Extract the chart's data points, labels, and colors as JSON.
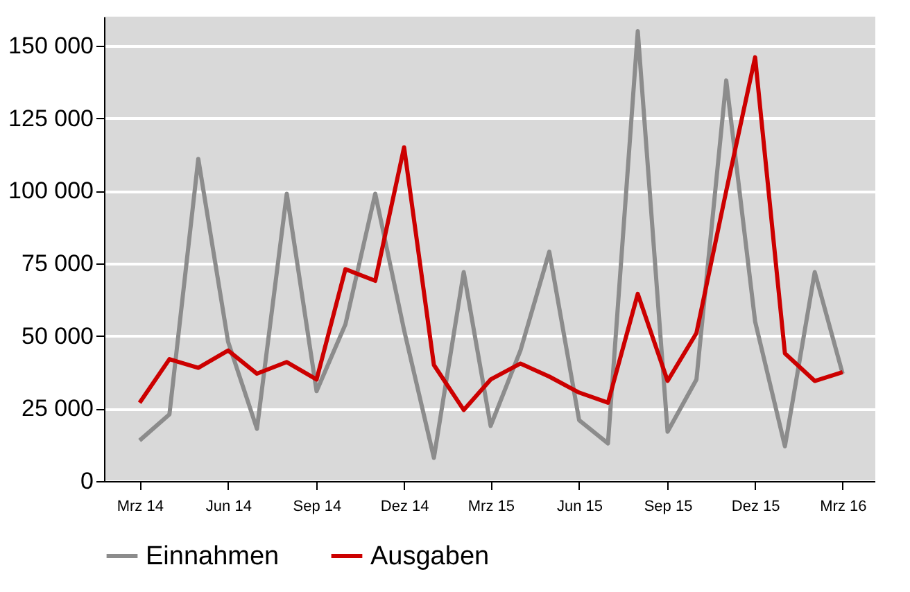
{
  "chart_data": {
    "type": "line",
    "x": [
      "2014-03",
      "2014-04",
      "2014-05",
      "2014-06",
      "2014-07",
      "2014-08",
      "2014-09",
      "2014-10",
      "2014-11",
      "2014-12",
      "2015-01",
      "2015-02",
      "2015-03",
      "2015-04",
      "2015-05",
      "2015-06",
      "2015-07",
      "2015-08",
      "2015-09",
      "2015-10",
      "2015-11",
      "2015-12",
      "2016-01",
      "2016-02",
      "2016-03"
    ],
    "series": [
      {
        "name": "Einnahmen",
        "color": "#8c8c8c",
        "values": [
          14000,
          23000,
          111000,
          48000,
          18000,
          99000,
          31000,
          54000,
          99000,
          52000,
          8000,
          72000,
          19000,
          45000,
          79000,
          21000,
          13000,
          155000,
          17000,
          35000,
          138000,
          55000,
          12000,
          72000,
          37000
        ]
      },
      {
        "name": "Ausgaben",
        "color": "#cc0000",
        "values": [
          27000,
          42000,
          39000,
          45000,
          37000,
          41000,
          35000,
          73000,
          69000,
          115000,
          40000,
          24500,
          35000,
          40500,
          36000,
          30500,
          27000,
          64500,
          34500,
          51000,
          100000,
          146000,
          44000,
          34500,
          37500
        ]
      }
    ],
    "xlim": [
      "2014-01-23",
      "2016-04-04"
    ],
    "xticks": [
      {
        "value": "2014-03",
        "label": "Mrz 14"
      },
      {
        "value": "2014-06",
        "label": "Jun 14"
      },
      {
        "value": "2014-09",
        "label": "Sep 14"
      },
      {
        "value": "2014-12",
        "label": "Dez 14"
      },
      {
        "value": "2015-03",
        "label": "Mrz 15"
      },
      {
        "value": "2015-06",
        "label": "Jun 15"
      },
      {
        "value": "2015-09",
        "label": "Sep 15"
      },
      {
        "value": "2015-12",
        "label": "Dez 15"
      },
      {
        "value": "2016-03",
        "label": "Mrz 16"
      }
    ],
    "ylim": [
      0,
      160000
    ],
    "yticks": [
      {
        "value": 0,
        "label": "0"
      },
      {
        "value": 25000,
        "label": "25 000"
      },
      {
        "value": 50000,
        "label": "50 000"
      },
      {
        "value": 75000,
        "label": "75 000"
      },
      {
        "value": 100000,
        "label": "100 000"
      },
      {
        "value": 125000,
        "label": "125 000"
      },
      {
        "value": 150000,
        "label": "150 000"
      }
    ],
    "grid": "y",
    "legend": "bottom",
    "marker": "none",
    "line_style": "solid"
  }
}
